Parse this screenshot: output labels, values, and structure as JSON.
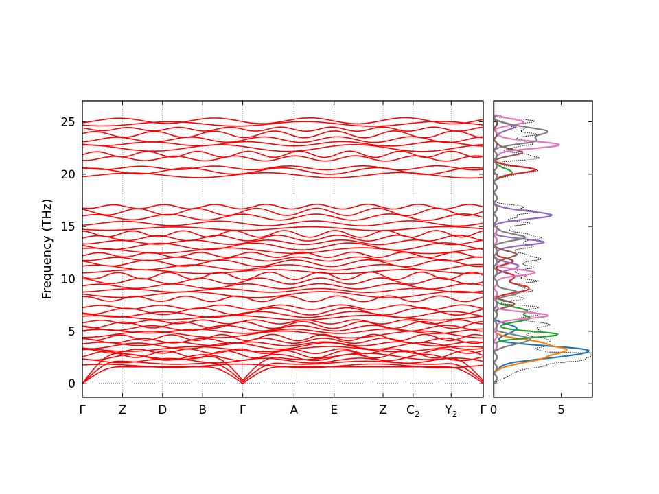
{
  "chart_data": [
    {
      "type": "line",
      "panel": "phonon band structure",
      "ylabel": "Frequency (THz)",
      "xlabel": "",
      "ylim": [
        -1.3,
        27
      ],
      "yticks": [
        "0",
        "5",
        "10",
        "15",
        "20",
        "25"
      ],
      "ytick_values": [
        0,
        5,
        10,
        15,
        20,
        25
      ],
      "path_labels": [
        {
          "label": "Γ",
          "sub": "",
          "pos": 0.0
        },
        {
          "label": "Z",
          "sub": "",
          "pos": 0.1
        },
        {
          "label": "D",
          "sub": "",
          "pos": 0.2
        },
        {
          "label": "B",
          "sub": "",
          "pos": 0.3
        },
        {
          "label": "Γ",
          "sub": "",
          "pos": 0.4
        },
        {
          "label": "A",
          "sub": "",
          "pos": 0.528
        },
        {
          "label": "E",
          "sub": "",
          "pos": 0.628
        },
        {
          "label": "Z",
          "sub": "",
          "pos": 0.75
        },
        {
          "label": "C",
          "sub": "2",
          "pos": 0.825
        },
        {
          "label": "Y",
          "sub": "2",
          "pos": 0.92
        },
        {
          "label": "Γ",
          "sub": "",
          "pos": 1.0
        }
      ],
      "acoustic_branches": 3,
      "band_levels_thz": [
        1.7,
        2.2,
        2.5,
        2.8,
        3.1,
        3.3,
        3.6,
        3.8,
        4.1,
        4.4,
        4.7,
        5.0,
        5.3,
        5.6,
        5.9,
        6.3,
        6.6,
        6.9,
        7.3,
        8.1,
        8.5,
        8.9,
        9.3,
        9.8,
        10.3,
        10.7,
        11.1,
        11.5,
        11.9,
        12.3,
        12.7,
        13.1,
        13.5,
        13.9,
        14.3,
        14.8,
        15.3,
        15.9,
        16.4,
        16.9,
        19.9,
        20.3,
        20.6,
        21.5,
        21.9,
        22.5,
        22.9,
        23.3,
        23.8,
        24.3,
        24.8,
        25.1
      ],
      "series": [
        {
          "name": "",
          "color": "#ff0000"
        }
      ],
      "zero_line_color": "#0000cc"
    },
    {
      "type": "area",
      "panel": "density of states",
      "xlim": [
        0,
        7.3
      ],
      "xticks": [
        "0",
        "5"
      ],
      "xtick_values": [
        0,
        5
      ],
      "ylim": [
        -1.3,
        27
      ],
      "total_dos_style": "dotted",
      "series": [
        {
          "name": "",
          "color": "#1f77b4",
          "peaks": [
            [
              2.8,
              0.5,
              4.8
            ],
            [
              3.3,
              0.35,
              3.5
            ],
            [
              5.2,
              0.4,
              1.6
            ]
          ]
        },
        {
          "name": "",
          "color": "#ff7f0e",
          "peaks": [
            [
              2.3,
              0.4,
              2.8
            ],
            [
              3.2,
              0.4,
              5.0
            ],
            [
              4.0,
              0.3,
              2.6
            ]
          ]
        },
        {
          "name": "",
          "color": "#2ca02c",
          "peaks": [
            [
              4.7,
              0.3,
              4.5
            ],
            [
              6.2,
              0.3,
              2.5
            ],
            [
              7.0,
              0.3,
              2.3
            ],
            [
              20.2,
              0.3,
              1.3
            ]
          ]
        },
        {
          "name": "",
          "color": "#d62728",
          "peaks": [
            [
              9.1,
              0.35,
              2.6
            ],
            [
              10.2,
              0.3,
              1.5
            ],
            [
              20.4,
              0.3,
              3.0
            ],
            [
              11.7,
              0.3,
              1.2
            ]
          ]
        },
        {
          "name": "",
          "color": "#9467bd",
          "peaks": [
            [
              16.1,
              0.35,
              4.2
            ],
            [
              13.5,
              0.3,
              3.5
            ],
            [
              11.2,
              0.3,
              1.8
            ],
            [
              24.5,
              0.3,
              1.5
            ]
          ]
        },
        {
          "name": "",
          "color": "#8c564b",
          "peaks": [
            [
              22.1,
              0.3,
              2.0
            ],
            [
              12.3,
              0.3,
              1.6
            ],
            [
              7.6,
              0.3,
              1.3
            ]
          ]
        },
        {
          "name": "",
          "color": "#e377c2",
          "peaks": [
            [
              22.8,
              0.35,
              4.6
            ],
            [
              10.6,
              0.3,
              2.8
            ],
            [
              6.5,
              0.3,
              3.8
            ],
            [
              25.0,
              0.3,
              2.0
            ]
          ]
        },
        {
          "name": "",
          "color": "#7f7f7f",
          "peaks": [
            [
              24.1,
              0.4,
              3.8
            ],
            [
              23.2,
              0.3,
              2.8
            ],
            [
              4.2,
              0.4,
              2.6
            ],
            [
              14.0,
              0.3,
              2.2
            ],
            [
              8.7,
              0.3,
              1.6
            ]
          ]
        }
      ]
    }
  ]
}
